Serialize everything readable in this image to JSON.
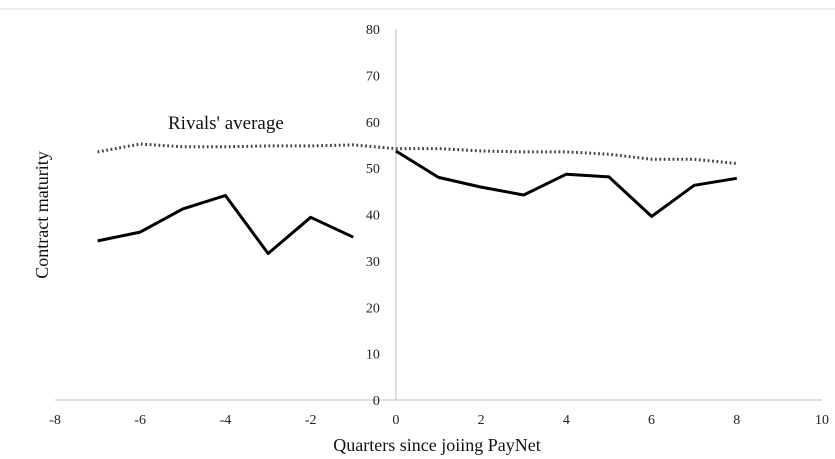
{
  "chart_data": {
    "type": "line",
    "title": "",
    "xlabel": "Quarters since joiing PayNet",
    "ylabel": "Contract maturity",
    "xlim": [
      -8,
      10
    ],
    "ylim": [
      0,
      80
    ],
    "x_ticks": [
      "-8",
      "-6",
      "-4",
      "-2",
      "0",
      "2",
      "4",
      "6",
      "8",
      "10"
    ],
    "y_ticks": [
      "0",
      "10",
      "20",
      "30",
      "40",
      "50",
      "60",
      "70",
      "80"
    ],
    "grid": false,
    "annotation": "Rivals' average",
    "series": [
      {
        "style": "solid",
        "color": "#000000",
        "segments": [
          {
            "x": [
              -7,
              -6,
              -5,
              -4,
              -3,
              -2,
              -1
            ],
            "y": [
              34.3,
              36.2,
              41.2,
              44.1,
              31.6,
              39.4,
              35.1
            ]
          },
          {
            "x": [
              0,
              1,
              2,
              3,
              4,
              5,
              6,
              7,
              8
            ],
            "y": [
              53.7,
              48.0,
              45.9,
              44.2,
              48.7,
              48.1,
              39.6,
              46.3,
              47.8
            ]
          }
        ]
      },
      {
        "name": "Rivals' average",
        "style": "dotted",
        "color": "#444444",
        "segments": [
          {
            "x": [
              -7,
              -6,
              -5,
              -4,
              -3,
              -2,
              -1,
              0,
              1,
              2,
              3,
              4,
              5,
              6,
              7,
              8
            ],
            "y": [
              53.5,
              55.2,
              54.6,
              54.6,
              54.8,
              54.8,
              55.0,
              54.2,
              54.2,
              53.7,
              53.5,
              53.5,
              53.0,
              51.9,
              51.9,
              51.0
            ]
          }
        ]
      }
    ]
  }
}
